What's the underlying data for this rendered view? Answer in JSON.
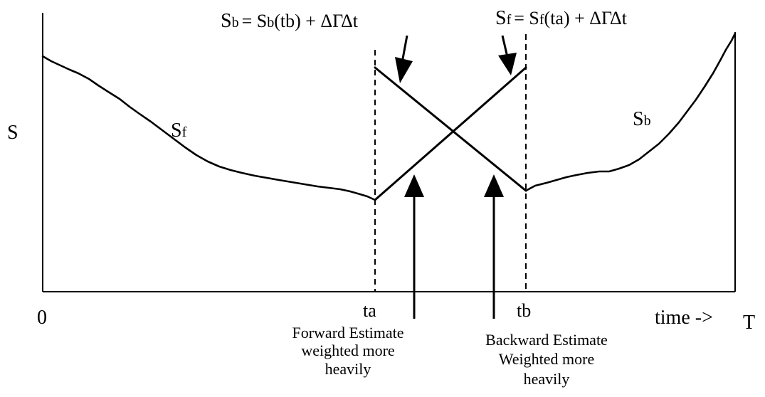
{
  "diagram": {
    "y_axis_label": "S",
    "origin_label": "0",
    "end_label": "T",
    "time_label": "time ->",
    "ta_label": "ta",
    "tb_label": "tb",
    "curve_forward": {
      "main": "S",
      "sub": "f"
    },
    "curve_backward": {
      "main": "S",
      "sub": "b"
    },
    "eq_backward": {
      "lhs_main": "S",
      "lhs_sub": "b",
      "rhs_main": "= S",
      "rhs_sub": "b",
      "rhs_rest": "(tb) + ΔΓΔt"
    },
    "eq_forward": {
      "lhs_main": "S",
      "lhs_sub": "f",
      "rhs_main": "= S",
      "rhs_sub": "f",
      "rhs_rest": "(ta) + ΔΓΔt"
    },
    "forward_note": [
      "Forward Estimate",
      "weighted more",
      "heavily"
    ],
    "backward_note": [
      "Backward Estimate",
      "Weighted more",
      "heavily"
    ]
  }
}
